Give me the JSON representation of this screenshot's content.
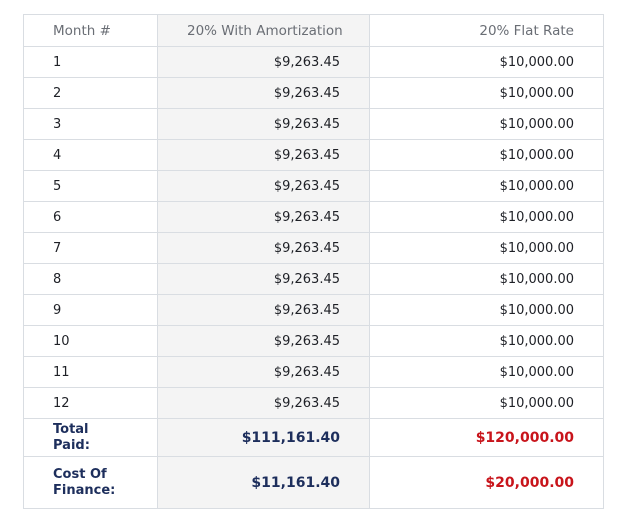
{
  "table": {
    "headers": {
      "month": "Month #",
      "amortization": "20% With Amortization",
      "flat": "20% Flat Rate"
    },
    "rows": [
      {
        "month": "1",
        "amortization": "$9,263.45",
        "flat": "$10,000.00"
      },
      {
        "month": "2",
        "amortization": "$9,263.45",
        "flat": "$10,000.00"
      },
      {
        "month": "3",
        "amortization": "$9,263.45",
        "flat": "$10,000.00"
      },
      {
        "month": "4",
        "amortization": "$9,263.45",
        "flat": "$10,000.00"
      },
      {
        "month": "5",
        "amortization": "$9,263.45",
        "flat": "$10,000.00"
      },
      {
        "month": "6",
        "amortization": "$9,263.45",
        "flat": "$10,000.00"
      },
      {
        "month": "7",
        "amortization": "$9,263.45",
        "flat": "$10,000.00"
      },
      {
        "month": "8",
        "amortization": "$9,263.45",
        "flat": "$10,000.00"
      },
      {
        "month": "9",
        "amortization": "$9,263.45",
        "flat": "$10,000.00"
      },
      {
        "month": "10",
        "amortization": "$9,263.45",
        "flat": "$10,000.00"
      },
      {
        "month": "11",
        "amortization": "$9,263.45",
        "flat": "$10,000.00"
      },
      {
        "month": "12",
        "amortization": "$9,263.45",
        "flat": "$10,000.00"
      }
    ],
    "total": {
      "label": "Total Paid:",
      "amortization": "$111,161.40",
      "flat": "$120,000.00"
    },
    "cost": {
      "label": "Cost Of Finance:",
      "amortization": "$11,161.40",
      "flat": "$20,000.00"
    }
  },
  "colors": {
    "navy": "#1d2e5c",
    "red": "#c8141b",
    "shaded_column": "#f4f4f4",
    "border": "#d9dde2"
  }
}
